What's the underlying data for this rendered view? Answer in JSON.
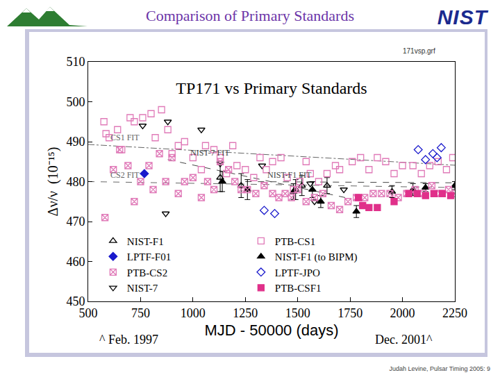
{
  "slide": {
    "title": "Comparison of Primary Standards",
    "logo": "NIST",
    "footer": "Judah Levine, Pulsar Timing 2005: 9"
  },
  "chart_data": {
    "type": "scatter",
    "title": "TP171 vs Primary Standards",
    "x_label": "MJD - 50000 (days)",
    "y_label": "Δν/ν  (10⁻¹⁵)",
    "annotations": [
      "171vsp.grf",
      "^ Feb. 1997",
      "Dec. 2001^"
    ],
    "xlim": [
      500,
      2250
    ],
    "xticks": [
      500,
      750,
      1000,
      1250,
      1500,
      1750,
      2000,
      2250
    ],
    "ylim": [
      450,
      510
    ],
    "yticks": [
      450,
      460,
      470,
      480,
      490,
      500,
      510
    ],
    "grid": false,
    "legend": "lower left",
    "series": [
      {
        "name": "NIST-F1",
        "color": "#000000",
        "marker": "triangle-up-open",
        "x": [
          1130,
          1230,
          1490,
          1520,
          1640
        ],
        "values": [
          481,
          479,
          478,
          479,
          479
        ],
        "errors": [
          3.5,
          3,
          2.5,
          2.5,
          2
        ]
      },
      {
        "name": "NIST-F1 (to BIPM)",
        "color": "#000000",
        "marker": "triangle-up",
        "x": [
          1140,
          1260,
          1480,
          1570,
          1610,
          1780,
          1950,
          2050,
          2110,
          2250
        ],
        "values": [
          480,
          478,
          477.5,
          478,
          475,
          472.5,
          477.5,
          478,
          478.5,
          479
        ],
        "errors": [
          2.5,
          2.5,
          2,
          2,
          1.5,
          1.5,
          1.5,
          1.5,
          1,
          1
        ]
      },
      {
        "name": "NIST-7",
        "color": "#000000",
        "marker": "triangle-down-open",
        "x": [
          760,
          880,
          1040,
          870,
          1130,
          1330,
          1560,
          1720,
          1580
        ],
        "values": [
          494,
          495,
          493,
          472,
          484.5,
          484,
          479.5,
          478,
          475
        ]
      },
      {
        "name": "PTB-CS1",
        "color": "#e07ab8",
        "marker": "square-open",
        "x": [
          575,
          585,
          600,
          640,
          660,
          700,
          720,
          760,
          800,
          820,
          850,
          880,
          900,
          930,
          960,
          1000,
          1040,
          1060,
          1100,
          1130,
          1160,
          1190,
          1210,
          1250,
          1290,
          1320,
          1350,
          1380,
          1420,
          1450,
          1480,
          1510,
          1540,
          1560,
          1600,
          1640,
          1680,
          1700,
          1760,
          1800,
          1840,
          1880,
          1920,
          1960,
          2000,
          2050,
          2090,
          2130,
          2170,
          2210,
          2240
        ],
        "values": [
          495,
          492,
          491,
          493,
          488,
          496,
          495,
          496,
          497,
          491,
          498,
          493,
          487,
          489,
          490,
          486,
          483,
          489,
          488,
          486,
          482,
          489,
          484,
          483,
          481,
          486,
          483,
          485,
          486,
          481,
          478,
          480,
          485,
          482,
          480,
          482,
          484,
          483,
          485,
          486,
          483,
          486,
          485,
          482,
          484,
          484,
          482,
          484,
          485,
          483,
          486
        ]
      },
      {
        "name": "PTB-CS2",
        "color": "#e07ab8",
        "marker": "square-x-open",
        "x": [
          580,
          620,
          650,
          690,
          720,
          750,
          790,
          810,
          840,
          870,
          900,
          930,
          960,
          1000,
          1040,
          1070,
          1100,
          1130,
          1170,
          1200,
          1230,
          1260,
          1300,
          1340,
          1380,
          1410,
          1440,
          1470,
          1500,
          1540,
          1580,
          1620,
          1660,
          1700,
          1740,
          1780,
          1820,
          1860,
          1900,
          1940,
          1980,
          2020,
          2060,
          2100,
          2140,
          2180,
          2220,
          2250
        ],
        "values": [
          471,
          483,
          488,
          484,
          475,
          480,
          484,
          478,
          487,
          480,
          486,
          477,
          480,
          481,
          476,
          480,
          478,
          485,
          483,
          480,
          478,
          478,
          477,
          479,
          477,
          476,
          477,
          476,
          478,
          475,
          476,
          477,
          474,
          473,
          475,
          476,
          476,
          477,
          477,
          477,
          476,
          477,
          478,
          477,
          479,
          477,
          478,
          477
        ]
      },
      {
        "name": "PTB-CSF1",
        "color": "#e0308a",
        "marker": "square",
        "x": [
          1790,
          1810,
          1840,
          1880,
          1960,
          2030,
          2070,
          2110,
          2150,
          2190,
          2230
        ],
        "values": [
          476,
          474,
          473.5,
          473.5,
          475,
          477,
          477,
          476.5,
          477,
          477,
          476.5
        ]
      },
      {
        "name": "LPTF-F01",
        "color": "#1a1acc",
        "marker": "diamond",
        "x": [
          768
        ],
        "values": [
          482
        ]
      },
      {
        "name": "LPTF-JPO",
        "color": "#1a1acc",
        "marker": "diamond-open",
        "x": [
          1340,
          1390,
          2075,
          2110,
          2145,
          2165,
          2185
        ],
        "values": [
          472.8,
          472,
          488,
          485.5,
          487,
          486,
          488.5
        ]
      }
    ],
    "fits": [
      {
        "name": "CS1 FIT",
        "color": "#666666",
        "line_style": "dashdot",
        "x": [
          500,
          2250
        ],
        "values": [
          489.3,
          484.1
        ]
      },
      {
        "name": "NIST-7 FIT",
        "color": "#444444",
        "line_style": "dash",
        "x": [
          880,
          1736
        ],
        "values": [
          485.5,
          475.9
        ]
      },
      {
        "name": "CS2 FIT",
        "color": "#666666",
        "line_style": "dash",
        "x": [
          500,
          2250
        ],
        "values": [
          480,
          478.5
        ]
      },
      {
        "name": "NIST-F1 FIT",
        "color": "#444444",
        "line_style": "dash",
        "x": [
          1250,
          2250
        ],
        "values": [
          480,
          479.7
        ]
      }
    ]
  }
}
